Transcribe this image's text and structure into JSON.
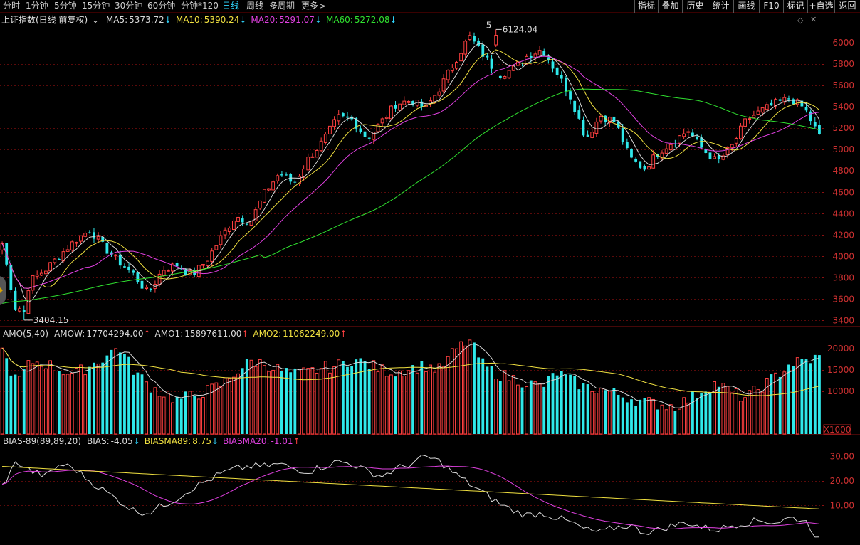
{
  "toolbar": {
    "periods": [
      {
        "label": "分时"
      },
      {
        "label": "1分钟"
      },
      {
        "label": "5分钟"
      },
      {
        "label": "15分钟"
      },
      {
        "label": "30分钟"
      },
      {
        "label": "60分钟"
      },
      {
        "label": "分钟*120"
      },
      {
        "label": "日线",
        "active": true
      },
      {
        "label": "周线"
      },
      {
        "label": "多周期"
      },
      {
        "label": "更多"
      }
    ],
    "right_buttons": [
      "指标",
      "叠加",
      "历史",
      "统计",
      "画线",
      "F10",
      "标记",
      "+自选",
      "返回"
    ]
  },
  "main_panel": {
    "title": "上证指数(日线 前复权)",
    "indicators": [
      {
        "label": "MA5:",
        "value": "5373.72",
        "dir": "down",
        "color": "#d8d8d8"
      },
      {
        "label": "MA10:",
        "value": "5390.24",
        "dir": "down",
        "color": "#f0e040"
      },
      {
        "label": "MA20:",
        "value": "5291.07",
        "dir": "down",
        "color": "#e040e0"
      },
      {
        "label": "MA60:",
        "value": "5272.08",
        "dir": "down",
        "color": "#30e030"
      }
    ],
    "y_ticks": [
      "6000",
      "5800",
      "5600",
      "5400",
      "5200",
      "5000",
      "4800",
      "4600",
      "4400",
      "4200",
      "4000",
      "3800",
      "3600",
      "3400"
    ],
    "high_label": "6124.04",
    "low_label": "3404.15",
    "high_marker": "5",
    "ylim": [
      3350,
      6160
    ]
  },
  "amo_panel": {
    "indicators": [
      {
        "label": "AMO(5,40)",
        "value": "",
        "dir": "",
        "color": "#d8d8d8"
      },
      {
        "label": "AMOW:",
        "value": "17704294.00",
        "dir": "up",
        "color": "#d8d8d8"
      },
      {
        "label": "AMO1:",
        "value": "15897611.00",
        "dir": "up",
        "color": "#d8d8d8"
      },
      {
        "label": "AMO2:",
        "value": "11062249.00",
        "dir": "up",
        "color": "#f0e040"
      }
    ],
    "y_ticks": [
      "20000",
      "15000",
      "10000"
    ],
    "unit": "X1000",
    "ylim": [
      0,
      22000
    ]
  },
  "bias_panel": {
    "indicators": [
      {
        "label": "BIAS-89(89,89,20)",
        "value": "",
        "dir": "",
        "color": "#d8d8d8"
      },
      {
        "label": "BIAS:",
        "value": "-4.05",
        "dir": "down",
        "color": "#d8d8d8"
      },
      {
        "label": "BIASMA89:",
        "value": "8.75",
        "dir": "down",
        "color": "#f0e040"
      },
      {
        "label": "BIASMA20:",
        "value": "-1.01",
        "dir": "up",
        "color": "#e040e0"
      }
    ],
    "y_ticks": [
      "30.00",
      "20.00",
      "10.00"
    ],
    "ylim": [
      -5,
      34
    ]
  },
  "colors": {
    "up": "#ff4040",
    "down": "#2fe8ea",
    "grid": "#5a0a0a",
    "axis": "#8a1010",
    "ma5": "#d8d8d8",
    "ma10": "#f0e040",
    "ma20": "#e040e0",
    "ma60": "#30e030"
  },
  "chart_data": {
    "type": "candlestick",
    "ohlc_anchors": [
      [
        4050,
        4150,
        3980,
        4120
      ],
      [
        4120,
        4130,
        3404,
        3450
      ],
      [
        3450,
        3800,
        3420,
        3780
      ],
      [
        3780,
        3900,
        3760,
        3880
      ],
      [
        3880,
        4050,
        3860,
        4020
      ],
      [
        4020,
        4180,
        4000,
        4150
      ],
      [
        4150,
        4300,
        4120,
        4250
      ],
      [
        4250,
        4280,
        4050,
        4080
      ],
      [
        4080,
        4100,
        3900,
        3950
      ],
      [
        3950,
        3980,
        3800,
        3830
      ],
      [
        3830,
        3880,
        3580,
        3650
      ],
      [
        3650,
        3900,
        3620,
        3880
      ],
      [
        3880,
        3950,
        3850,
        3920
      ],
      [
        3920,
        3960,
        3780,
        3820
      ],
      [
        3820,
        3980,
        3800,
        3960
      ],
      [
        3960,
        4200,
        3940,
        4180
      ],
      [
        4180,
        4400,
        4160,
        4380
      ],
      [
        4380,
        4500,
        4300,
        4320
      ],
      [
        4320,
        4620,
        4300,
        4600
      ],
      [
        4600,
        4800,
        4580,
        4780
      ],
      [
        4780,
        4760,
        4650,
        4680
      ],
      [
        4680,
        4950,
        4660,
        4920
      ],
      [
        4920,
        5100,
        4900,
        5080
      ],
      [
        5080,
        5320,
        5060,
        5300
      ],
      [
        5300,
        5400,
        5250,
        5280
      ],
      [
        5280,
        5300,
        5050,
        5100
      ],
      [
        5100,
        5280,
        5080,
        5260
      ],
      [
        5260,
        5450,
        5240,
        5430
      ],
      [
        5430,
        5500,
        5380,
        5460
      ],
      [
        5460,
        5480,
        5350,
        5380
      ],
      [
        5380,
        5600,
        5360,
        5580
      ],
      [
        5580,
        5850,
        5560,
        5820
      ],
      [
        5820,
        6124,
        5800,
        6060
      ],
      [
        6060,
        6100,
        5850,
        5880
      ],
      [
        5880,
        5900,
        5650,
        5700
      ],
      [
        5700,
        5780,
        5560,
        5750
      ],
      [
        5750,
        5900,
        5730,
        5880
      ],
      [
        5880,
        5960,
        5860,
        5940
      ],
      [
        5940,
        5960,
        5700,
        5720
      ],
      [
        5720,
        5740,
        5450,
        5480
      ],
      [
        5480,
        5500,
        5050,
        5100
      ],
      [
        5100,
        5350,
        5080,
        5320
      ],
      [
        5320,
        5380,
        5200,
        5260
      ],
      [
        5260,
        5280,
        4900,
        4920
      ],
      [
        4920,
        4960,
        4780,
        4820
      ],
      [
        4820,
        5000,
        4800,
        4980
      ],
      [
        4980,
        5100,
        4950,
        5080
      ],
      [
        5080,
        5200,
        5060,
        5180
      ],
      [
        5180,
        5200,
        4960,
        5000
      ],
      [
        5000,
        5020,
        4840,
        4880
      ],
      [
        4880,
        5050,
        4860,
        5030
      ],
      [
        5030,
        5300,
        5010,
        5280
      ],
      [
        5280,
        5400,
        5260,
        5360
      ],
      [
        5360,
        5460,
        5340,
        5430
      ],
      [
        5430,
        5520,
        5400,
        5480
      ],
      [
        5480,
        5500,
        5360,
        5380
      ],
      [
        5380,
        5400,
        5050,
        5120
      ]
    ],
    "amo_anchors": [
      19500,
      12000,
      17000,
      16500,
      15000,
      14000,
      16000,
      18000,
      20500,
      15000,
      11500,
      9500,
      8000,
      9000,
      10000,
      11500,
      14500,
      17000,
      16500,
      15000,
      14000,
      14500,
      15500,
      16000,
      17500,
      16500,
      15000,
      14500,
      15500,
      16000,
      15000,
      19500,
      22000,
      16000,
      14000,
      13000,
      12000,
      11000,
      14500,
      12500,
      11000,
      10500,
      9500,
      8500,
      7500,
      7000,
      6500,
      8000,
      10500,
      12000,
      9500,
      8500,
      11000,
      13500,
      16500,
      17000,
      18000
    ],
    "bias_anchors": [
      18,
      28,
      24,
      22,
      27,
      25,
      20,
      16,
      12,
      8,
      7,
      10,
      13,
      17,
      20,
      23,
      25,
      26,
      26,
      27,
      25,
      24,
      26,
      28,
      27,
      24,
      22,
      25,
      27,
      30,
      28,
      23,
      19,
      15,
      11,
      8,
      6,
      7,
      5,
      3,
      0,
      -1,
      1,
      2,
      -1,
      0,
      2,
      3,
      1,
      0,
      2,
      3,
      4,
      3,
      5,
      4,
      -4
    ],
    "n_candles": 188
  }
}
